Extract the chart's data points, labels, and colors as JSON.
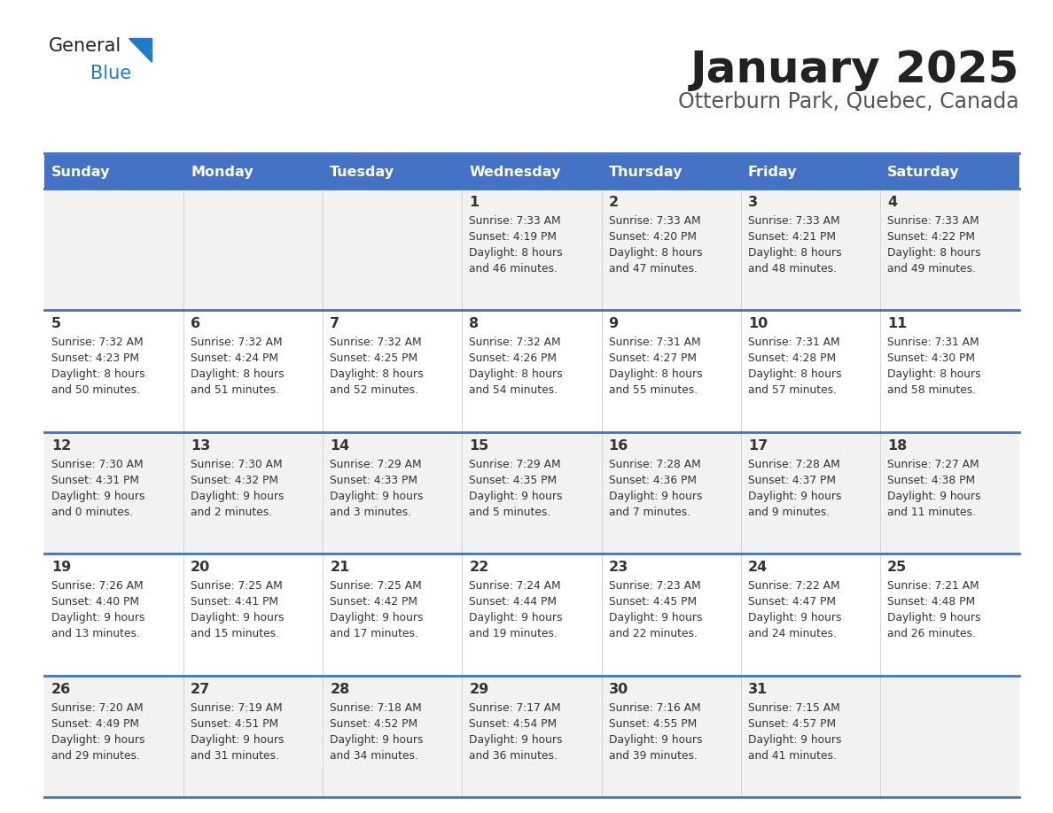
{
  "title": "January 2025",
  "subtitle": "Otterburn Park, Quebec, Canada",
  "days_of_week": [
    "Sunday",
    "Monday",
    "Tuesday",
    "Wednesday",
    "Thursday",
    "Friday",
    "Saturday"
  ],
  "header_bg": "#4472C4",
  "header_text": "#FFFFFF",
  "cell_bg_odd": "#F2F2F2",
  "cell_bg_even": "#FFFFFF",
  "grid_line_color": "#4472C4",
  "day_num_color": "#333333",
  "info_color": "#333333",
  "title_color": "#222222",
  "subtitle_color": "#555555",
  "logo_general_color": "#222222",
  "logo_blue_color": "#1E7CC8",
  "calendar": [
    [
      {
        "day": null
      },
      {
        "day": null
      },
      {
        "day": null
      },
      {
        "day": 1,
        "sunrise": "7:33 AM",
        "sunset": "4:19 PM",
        "daylight": "8 hours and 46 minutes."
      },
      {
        "day": 2,
        "sunrise": "7:33 AM",
        "sunset": "4:20 PM",
        "daylight": "8 hours and 47 minutes."
      },
      {
        "day": 3,
        "sunrise": "7:33 AM",
        "sunset": "4:21 PM",
        "daylight": "8 hours and 48 minutes."
      },
      {
        "day": 4,
        "sunrise": "7:33 AM",
        "sunset": "4:22 PM",
        "daylight": "8 hours and 49 minutes."
      }
    ],
    [
      {
        "day": 5,
        "sunrise": "7:32 AM",
        "sunset": "4:23 PM",
        "daylight": "8 hours and 50 minutes."
      },
      {
        "day": 6,
        "sunrise": "7:32 AM",
        "sunset": "4:24 PM",
        "daylight": "8 hours and 51 minutes."
      },
      {
        "day": 7,
        "sunrise": "7:32 AM",
        "sunset": "4:25 PM",
        "daylight": "8 hours and 52 minutes."
      },
      {
        "day": 8,
        "sunrise": "7:32 AM",
        "sunset": "4:26 PM",
        "daylight": "8 hours and 54 minutes."
      },
      {
        "day": 9,
        "sunrise": "7:31 AM",
        "sunset": "4:27 PM",
        "daylight": "8 hours and 55 minutes."
      },
      {
        "day": 10,
        "sunrise": "7:31 AM",
        "sunset": "4:28 PM",
        "daylight": "8 hours and 57 minutes."
      },
      {
        "day": 11,
        "sunrise": "7:31 AM",
        "sunset": "4:30 PM",
        "daylight": "8 hours and 58 minutes."
      }
    ],
    [
      {
        "day": 12,
        "sunrise": "7:30 AM",
        "sunset": "4:31 PM",
        "daylight": "9 hours and 0 minutes."
      },
      {
        "day": 13,
        "sunrise": "7:30 AM",
        "sunset": "4:32 PM",
        "daylight": "9 hours and 2 minutes."
      },
      {
        "day": 14,
        "sunrise": "7:29 AM",
        "sunset": "4:33 PM",
        "daylight": "9 hours and 3 minutes."
      },
      {
        "day": 15,
        "sunrise": "7:29 AM",
        "sunset": "4:35 PM",
        "daylight": "9 hours and 5 minutes."
      },
      {
        "day": 16,
        "sunrise": "7:28 AM",
        "sunset": "4:36 PM",
        "daylight": "9 hours and 7 minutes."
      },
      {
        "day": 17,
        "sunrise": "7:28 AM",
        "sunset": "4:37 PM",
        "daylight": "9 hours and 9 minutes."
      },
      {
        "day": 18,
        "sunrise": "7:27 AM",
        "sunset": "4:38 PM",
        "daylight": "9 hours and 11 minutes."
      }
    ],
    [
      {
        "day": 19,
        "sunrise": "7:26 AM",
        "sunset": "4:40 PM",
        "daylight": "9 hours and 13 minutes."
      },
      {
        "day": 20,
        "sunrise": "7:25 AM",
        "sunset": "4:41 PM",
        "daylight": "9 hours and 15 minutes."
      },
      {
        "day": 21,
        "sunrise": "7:25 AM",
        "sunset": "4:42 PM",
        "daylight": "9 hours and 17 minutes."
      },
      {
        "day": 22,
        "sunrise": "7:24 AM",
        "sunset": "4:44 PM",
        "daylight": "9 hours and 19 minutes."
      },
      {
        "day": 23,
        "sunrise": "7:23 AM",
        "sunset": "4:45 PM",
        "daylight": "9 hours and 22 minutes."
      },
      {
        "day": 24,
        "sunrise": "7:22 AM",
        "sunset": "4:47 PM",
        "daylight": "9 hours and 24 minutes."
      },
      {
        "day": 25,
        "sunrise": "7:21 AM",
        "sunset": "4:48 PM",
        "daylight": "9 hours and 26 minutes."
      }
    ],
    [
      {
        "day": 26,
        "sunrise": "7:20 AM",
        "sunset": "4:49 PM",
        "daylight": "9 hours and 29 minutes."
      },
      {
        "day": 27,
        "sunrise": "7:19 AM",
        "sunset": "4:51 PM",
        "daylight": "9 hours and 31 minutes."
      },
      {
        "day": 28,
        "sunrise": "7:18 AM",
        "sunset": "4:52 PM",
        "daylight": "9 hours and 34 minutes."
      },
      {
        "day": 29,
        "sunrise": "7:17 AM",
        "sunset": "4:54 PM",
        "daylight": "9 hours and 36 minutes."
      },
      {
        "day": 30,
        "sunrise": "7:16 AM",
        "sunset": "4:55 PM",
        "daylight": "9 hours and 39 minutes."
      },
      {
        "day": 31,
        "sunrise": "7:15 AM",
        "sunset": "4:57 PM",
        "daylight": "9 hours and 41 minutes."
      },
      {
        "day": null
      }
    ]
  ]
}
